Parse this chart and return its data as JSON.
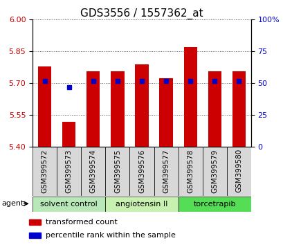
{
  "title": "GDS3556 / 1557362_at",
  "samples": [
    "GSM399572",
    "GSM399573",
    "GSM399574",
    "GSM399575",
    "GSM399576",
    "GSM399577",
    "GSM399578",
    "GSM399579",
    "GSM399580"
  ],
  "red_values": [
    5.78,
    5.52,
    5.755,
    5.755,
    5.79,
    5.725,
    5.87,
    5.755,
    5.755
  ],
  "blue_percentiles": [
    52,
    47,
    52,
    52,
    52,
    52,
    52,
    52,
    52
  ],
  "y_min": 5.4,
  "y_max": 6.0,
  "y_ticks_left": [
    5.4,
    5.55,
    5.7,
    5.85,
    6.0
  ],
  "y_ticks_right": [
    0,
    25,
    50,
    75,
    100
  ],
  "groups": [
    {
      "label": "solvent control",
      "start": 0,
      "end": 3,
      "color": "#b8e8b8"
    },
    {
      "label": "angiotensin II",
      "start": 3,
      "end": 6,
      "color": "#c8f0b0"
    },
    {
      "label": "torcetrapib",
      "start": 6,
      "end": 9,
      "color": "#55dd55"
    }
  ],
  "bar_color": "#cc0000",
  "dot_color": "#0000cc",
  "bar_width": 0.55,
  "left_label_color": "#cc0000",
  "right_label_color": "#0000cc",
  "legend_red": "transformed count",
  "legend_blue": "percentile rank within the sample",
  "tick_fontsize": 8,
  "title_fontsize": 11
}
